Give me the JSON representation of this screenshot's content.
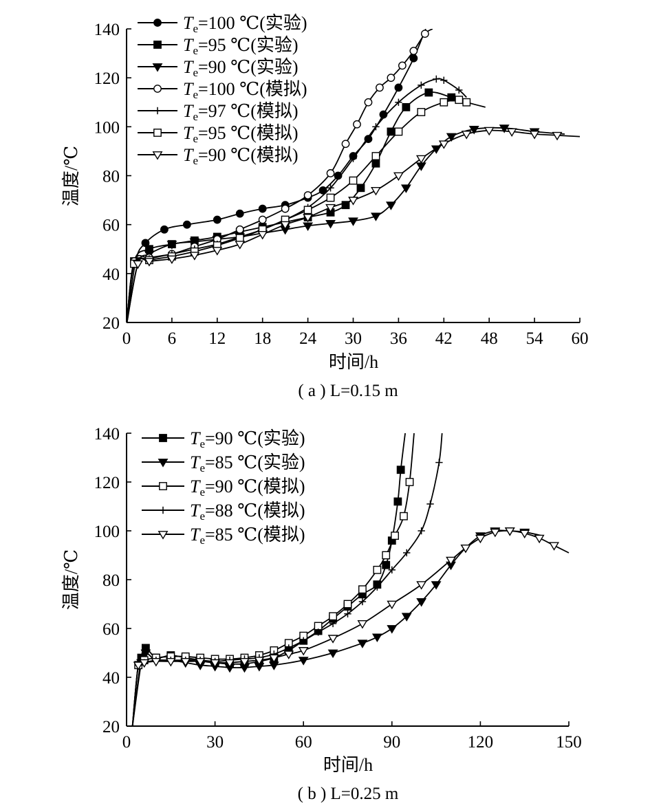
{
  "chart_data": [
    {
      "type": "line",
      "caption": "( a ) L=0.15 m",
      "xlabel": "时间/h",
      "ylabel": "温度/℃",
      "xlim": [
        0,
        60
      ],
      "ylim": [
        20,
        140
      ],
      "xticks": [
        "0",
        "6",
        "12",
        "18",
        "24",
        "30",
        "36",
        "42",
        "48",
        "54",
        "60"
      ],
      "yticks": [
        "20",
        "40",
        "60",
        "80",
        "100",
        "120",
        "140"
      ],
      "legend_position": "top-left",
      "series": [
        {
          "name": "Te=100 ℃(实验)",
          "temp_label": "100 ℃(实验)",
          "marker": "filled-circle",
          "x": [
            0,
            1.2,
            2.5,
            5,
            8,
            12,
            15,
            18,
            21,
            24,
            26,
            28,
            30,
            32,
            34,
            36,
            38,
            39.6
          ],
          "y": [
            19,
            45,
            52.5,
            58,
            60,
            62,
            64.5,
            66.5,
            68,
            71,
            74,
            80,
            88,
            95,
            105,
            116,
            128,
            140
          ]
        },
        {
          "name": "Te=95 ℃(实验)",
          "temp_label": "95 ℃(实验)",
          "marker": "filled-square",
          "x": [
            0,
            1,
            3,
            6,
            9,
            12,
            15,
            18,
            21,
            24,
            27,
            29,
            31,
            33,
            35,
            37,
            40,
            43,
            45
          ],
          "y": [
            19,
            45,
            50,
            52,
            53.5,
            55,
            57,
            59,
            61,
            63,
            65,
            68,
            75,
            85,
            98,
            108,
            114,
            112,
            110
          ]
        },
        {
          "name": "Te=90 ℃(实验)",
          "temp_label": "90 ℃(实验)",
          "marker": "filled-triangle-down",
          "x": [
            0,
            1.5,
            3,
            6,
            9,
            12,
            15,
            18,
            21,
            24,
            27,
            30,
            33,
            35,
            37,
            39,
            41,
            43,
            46,
            50,
            54,
            58
          ],
          "y": [
            19,
            44,
            48,
            52,
            53,
            54,
            55,
            56.5,
            58,
            59.5,
            60.5,
            61.5,
            63.5,
            68,
            75,
            84,
            91,
            96,
            99,
            99.5,
            98,
            97
          ]
        },
        {
          "name": "Te=100 ℃(模拟)",
          "temp_label": "100 ℃(模拟)",
          "marker": "open-circle",
          "x": [
            0,
            1,
            3,
            6,
            9,
            12,
            15,
            18,
            21,
            24,
            27,
            29,
            30.5,
            32,
            33.5,
            35,
            36.5,
            38,
            39.5,
            40.5
          ],
          "y": [
            19,
            45,
            46.5,
            48,
            51,
            54,
            58,
            62,
            66.5,
            72,
            81,
            93,
            101,
            110,
            116,
            120,
            125,
            131,
            138,
            140
          ]
        },
        {
          "name": "Te=97 ℃(模拟)",
          "temp_label": "97 ℃(模拟)",
          "marker": "plus",
          "x": [
            0,
            1,
            3,
            6,
            9,
            12,
            15,
            18,
            21,
            24,
            27,
            30,
            33,
            36,
            39,
            41,
            42,
            44,
            45
          ],
          "y": [
            19,
            44,
            46,
            48,
            50,
            52,
            55,
            58,
            62,
            67,
            75,
            87,
            100,
            110,
            117,
            119.5,
            119,
            115,
            112
          ]
        },
        {
          "name": "Te=95 ℃(模拟)",
          "temp_label": "95 ℃(模拟)",
          "marker": "open-square",
          "x": [
            0,
            1,
            3,
            6,
            9,
            12,
            15,
            18,
            21,
            24,
            27,
            30,
            33,
            36,
            39,
            42,
            44,
            45,
            47.5
          ],
          "y": [
            19,
            44,
            45.5,
            47,
            49,
            51.5,
            54.5,
            58,
            62,
            66,
            71,
            78,
            88,
            98,
            106,
            110,
            111,
            110,
            108
          ]
        },
        {
          "name": "Te=90 ℃(模拟)",
          "temp_label": "90 ℃(模拟)",
          "marker": "open-triangle-down",
          "x": [
            0,
            1.5,
            3,
            6,
            9,
            12,
            15,
            18,
            21,
            24,
            27,
            30,
            33,
            36,
            39,
            42,
            45,
            48,
            51,
            54,
            57,
            60
          ],
          "y": [
            19,
            44,
            45,
            46,
            47.5,
            49.5,
            52,
            56,
            60,
            63,
            67,
            70,
            74,
            80,
            87,
            93,
            97,
            98.5,
            98,
            97,
            96.5,
            96
          ]
        }
      ]
    },
    {
      "type": "line",
      "caption": "( b ) L=0.25 m",
      "xlabel": "时间/h",
      "ylabel": "温度/℃",
      "xlim": [
        0,
        150
      ],
      "ylim": [
        20,
        140
      ],
      "xticks": [
        "0",
        "30",
        "60",
        "90",
        "120",
        "150"
      ],
      "yticks": [
        "20",
        "40",
        "60",
        "80",
        "100",
        "120",
        "140"
      ],
      "legend_position": "top-left",
      "series": [
        {
          "name": "Te=90 ℃(实验)",
          "temp_label": "90 ℃(实验)",
          "marker": "filled-square",
          "x": [
            2,
            5,
            6.5,
            10,
            15,
            20,
            25,
            30,
            35,
            40,
            45,
            50,
            55,
            60,
            65,
            70,
            75,
            80,
            85,
            88,
            90,
            92,
            93,
            94.5
          ],
          "y": [
            20,
            48,
            52,
            48,
            49,
            48,
            47,
            46,
            45.5,
            45.5,
            46.5,
            48,
            51,
            55,
            59,
            64,
            69,
            74,
            78,
            86,
            96,
            112,
            125,
            140
          ]
        },
        {
          "name": "Te=85 ℃(实验)",
          "temp_label": "85 ℃(实验)",
          "marker": "filled-triangle-down",
          "x": [
            2,
            5,
            6.5,
            10,
            15,
            20,
            25,
            30,
            35,
            40,
            45,
            50,
            60,
            70,
            80,
            85,
            90,
            95,
            100,
            105,
            110,
            115,
            120,
            125,
            130,
            135,
            141
          ],
          "y": [
            20,
            46,
            50,
            47,
            47,
            46,
            45,
            44.5,
            44,
            44,
            44.5,
            45,
            47,
            50,
            54,
            56.5,
            60,
            65,
            71,
            78,
            86,
            93,
            98,
            100,
            100,
            99.5,
            98
          ]
        },
        {
          "name": "Te=90 ℃(模拟)",
          "temp_label": "90 ℃(模拟)",
          "marker": "open-square",
          "x": [
            2,
            4,
            6,
            10,
            15,
            20,
            25,
            30,
            35,
            40,
            45,
            50,
            55,
            60,
            65,
            70,
            75,
            80,
            85,
            88,
            91,
            94,
            96,
            97.5
          ],
          "y": [
            20,
            45,
            47,
            48,
            48.5,
            48.5,
            48,
            47.5,
            47.5,
            48,
            49,
            51,
            54,
            57,
            61,
            65,
            70,
            76,
            84,
            90,
            98,
            106,
            120,
            140
          ]
        },
        {
          "name": "Te=88 ℃(模拟)",
          "temp_label": "88 ℃(模拟)",
          "marker": "plus",
          "x": [
            2,
            4,
            6,
            10,
            15,
            20,
            25,
            30,
            35,
            40,
            45,
            50,
            55,
            60,
            65,
            70,
            75,
            80,
            85,
            90,
            95,
            100,
            103,
            106,
            107
          ],
          "y": [
            20,
            45,
            46,
            47,
            47,
            47,
            47,
            46.5,
            47,
            47.5,
            48,
            49.5,
            52,
            55,
            58.5,
            62,
            66,
            71,
            77,
            84,
            91,
            100,
            111,
            128,
            140
          ]
        },
        {
          "name": "Te=85 ℃(模拟)",
          "temp_label": "85 ℃(模拟)",
          "marker": "open-triangle-down",
          "x": [
            2,
            4,
            6,
            10,
            15,
            20,
            25,
            30,
            35,
            40,
            45,
            50,
            55,
            60,
            70,
            80,
            90,
            100,
            110,
            115,
            120,
            125,
            130,
            135,
            140,
            145,
            150
          ],
          "y": [
            20,
            45,
            46,
            46.5,
            46.5,
            46.5,
            46.5,
            46,
            46,
            46.5,
            47,
            48,
            49.5,
            51,
            56,
            62,
            70,
            78,
            88,
            93,
            97,
            99.5,
            100,
            99,
            97,
            94,
            91
          ]
        }
      ]
    }
  ]
}
